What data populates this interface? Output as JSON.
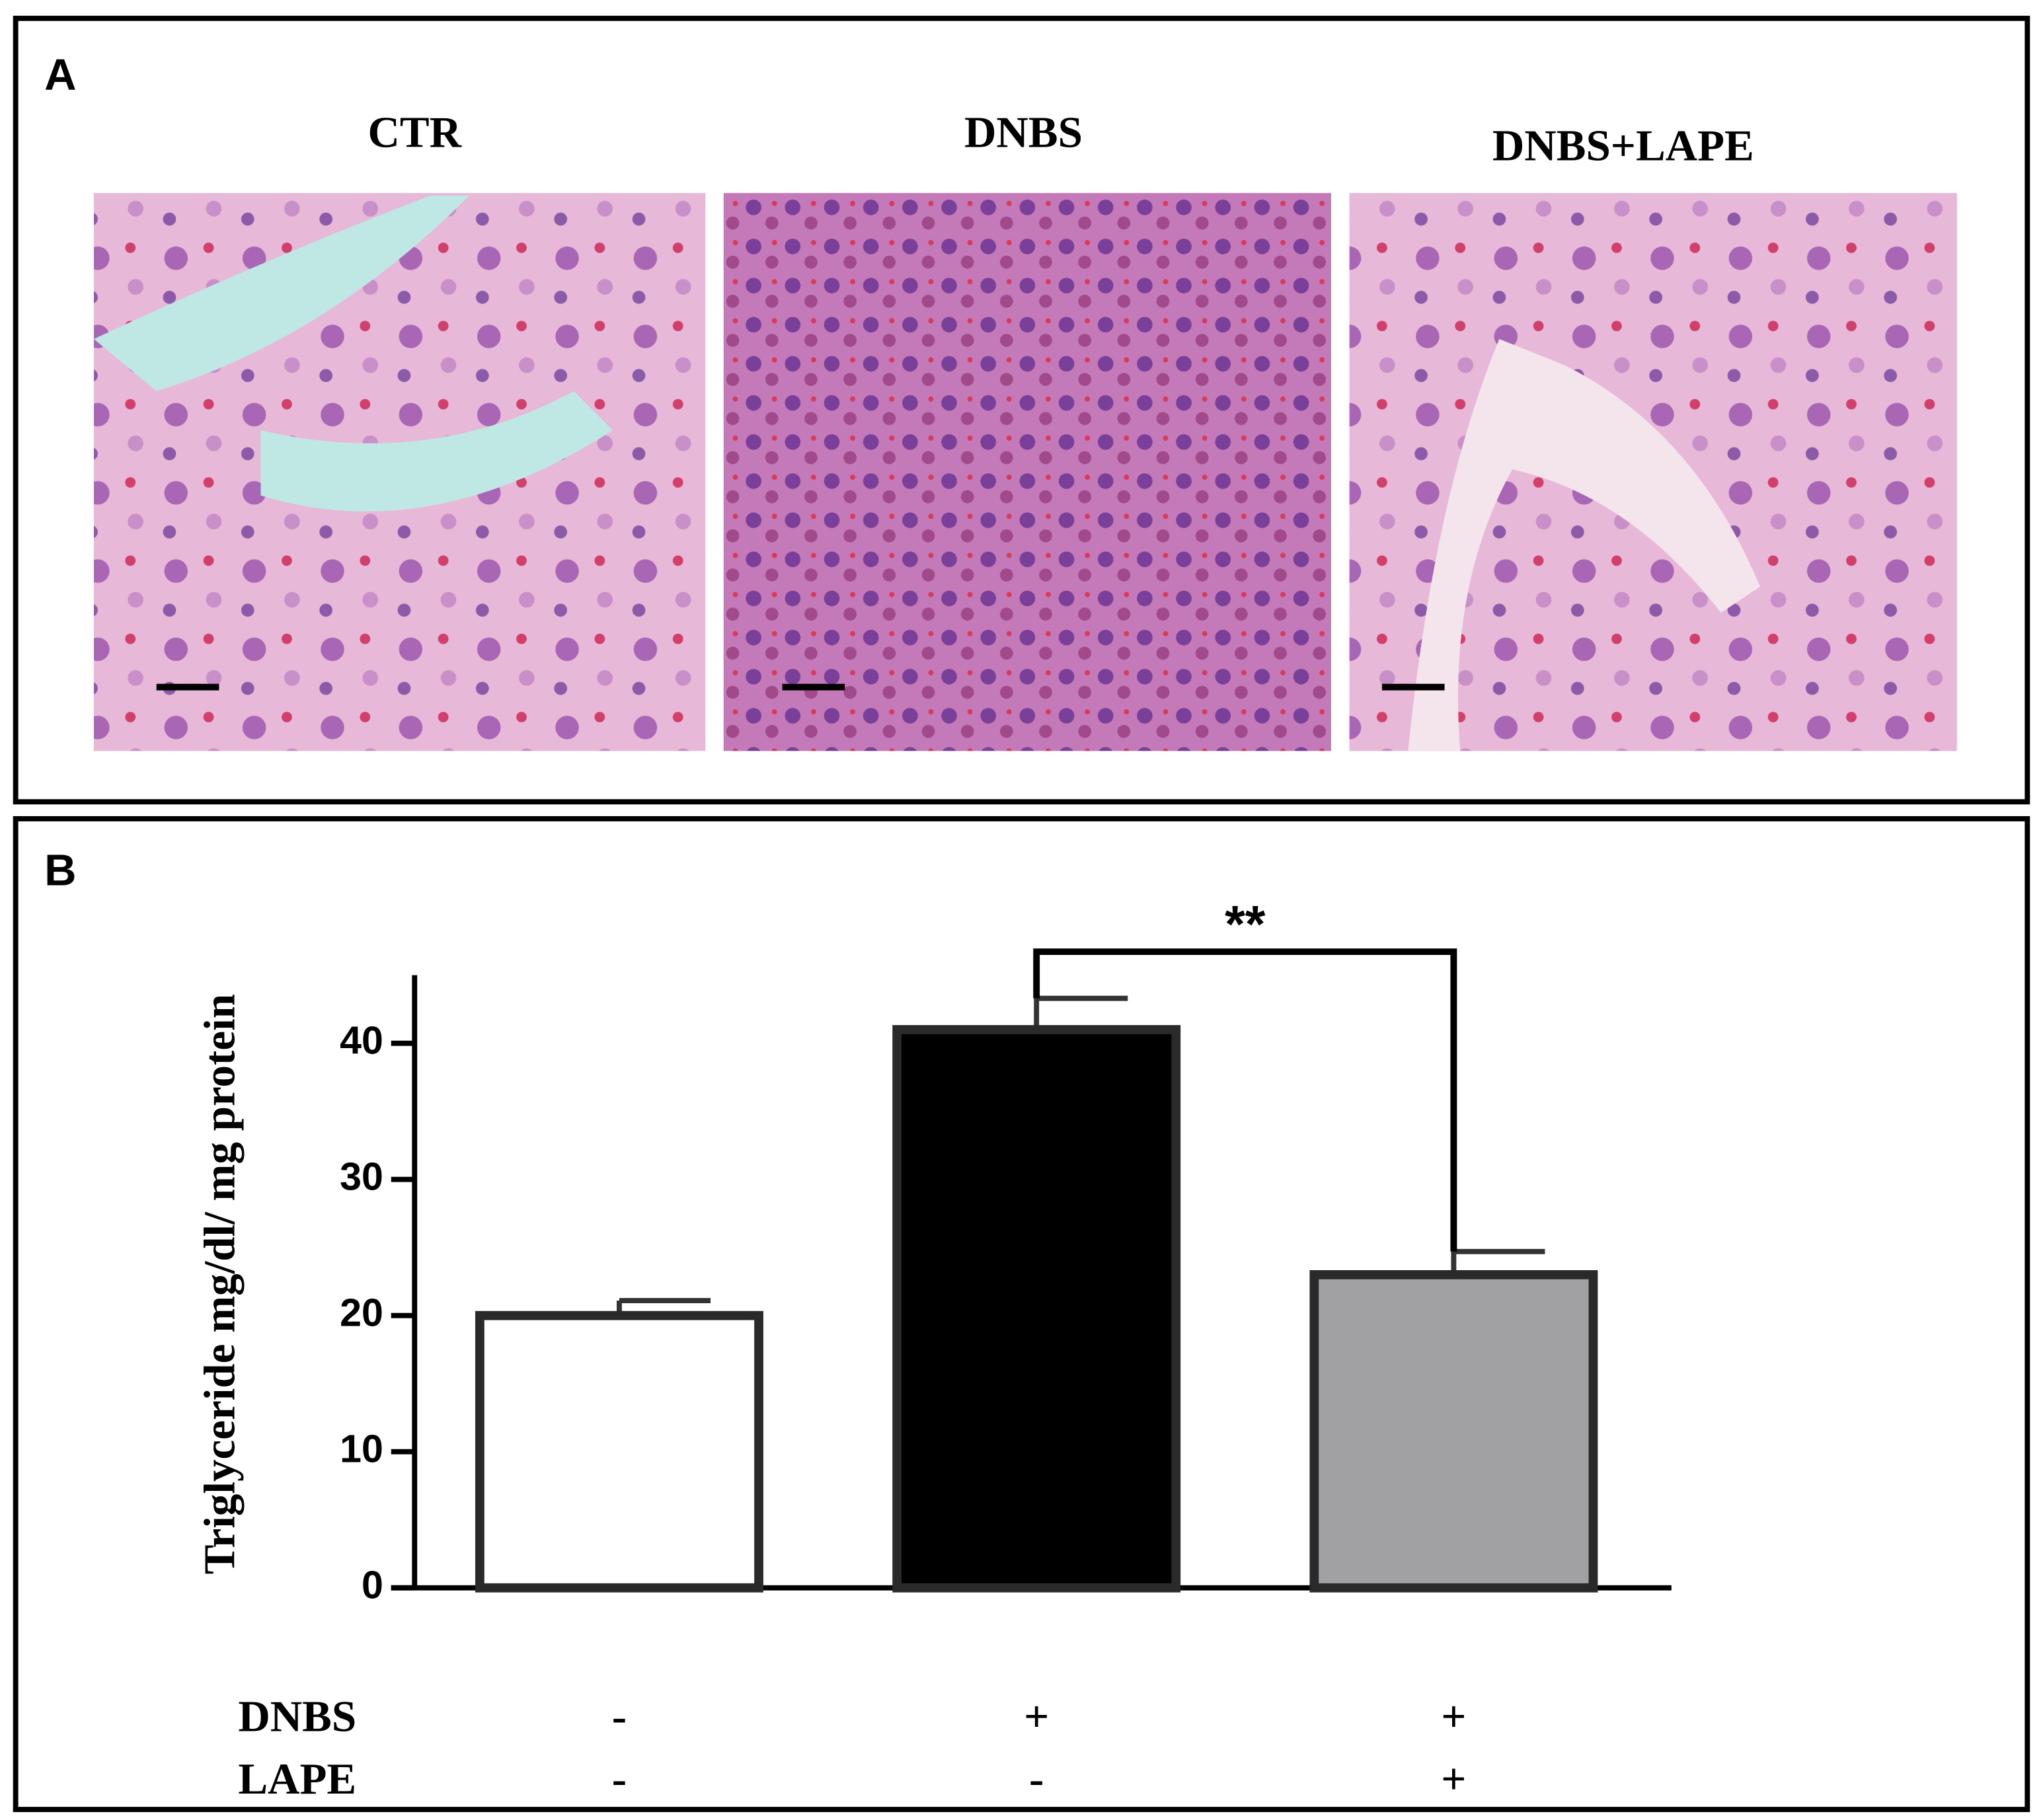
{
  "panel_a": {
    "label": "A",
    "images": [
      {
        "title": "CTR"
      },
      {
        "title": "DNBS"
      },
      {
        "title": "DNBS+LAPE"
      }
    ]
  },
  "panel_b": {
    "label": "B"
  },
  "chart_data": {
    "type": "bar",
    "y_label": "Triglyceride mg/dl/ mg protein",
    "categories": [
      null,
      null,
      null
    ],
    "values": [
      20,
      41,
      23
    ],
    "errors": [
      1.1,
      2.3,
      1.7
    ],
    "colors": [
      "#ffffff",
      "#000000",
      "#a1a1a4"
    ],
    "ylim": [
      0,
      45
    ],
    "yticks": [
      0,
      10,
      20,
      30,
      40
    ],
    "annotation": "**",
    "treatments": [
      {
        "name": "DNBS",
        "values": [
          "-",
          "+",
          "+"
        ]
      },
      {
        "name": "LAPE",
        "values": [
          "-",
          "-",
          "+"
        ]
      }
    ]
  }
}
